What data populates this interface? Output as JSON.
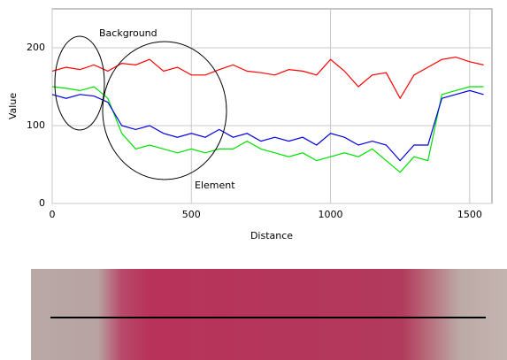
{
  "chart_data": {
    "type": "line",
    "x_label": "Distance",
    "y_label": "Value",
    "annotations": [
      "Background",
      "Element"
    ],
    "x": [
      0,
      50,
      100,
      150,
      200,
      250,
      300,
      350,
      400,
      450,
      500,
      550,
      600,
      650,
      700,
      750,
      800,
      850,
      900,
      950,
      1000,
      1050,
      1100,
      1150,
      1200,
      1250,
      1300,
      1350,
      1400,
      1450,
      1500,
      1550
    ],
    "series": [
      {
        "color": "#ff0000",
        "values": [
          170,
          175,
          172,
          178,
          170,
          180,
          178,
          185,
          170,
          175,
          165,
          165,
          172,
          178,
          170,
          168,
          165,
          172,
          170,
          165,
          185,
          170,
          150,
          165,
          168,
          135,
          165,
          175,
          185,
          188,
          182,
          178
        ]
      },
      {
        "color": "#00e000",
        "values": [
          150,
          148,
          145,
          150,
          135,
          90,
          70,
          75,
          70,
          65,
          70,
          65,
          70,
          70,
          80,
          70,
          65,
          60,
          65,
          55,
          60,
          65,
          60,
          70,
          55,
          40,
          60,
          55,
          140,
          145,
          150,
          150
        ]
      },
      {
        "color": "#0000e0",
        "values": [
          140,
          135,
          140,
          138,
          130,
          100,
          95,
          100,
          90,
          85,
          90,
          85,
          95,
          85,
          90,
          80,
          85,
          80,
          85,
          75,
          90,
          85,
          75,
          80,
          75,
          55,
          75,
          75,
          135,
          140,
          145,
          140
        ]
      }
    ],
    "xlim": [
      0,
      1580
    ],
    "ylim": [
      0,
      250
    ],
    "xticks": [
      0,
      500,
      1000,
      1500
    ],
    "yticks": [
      0,
      100,
      200
    ],
    "grid": true
  }
}
